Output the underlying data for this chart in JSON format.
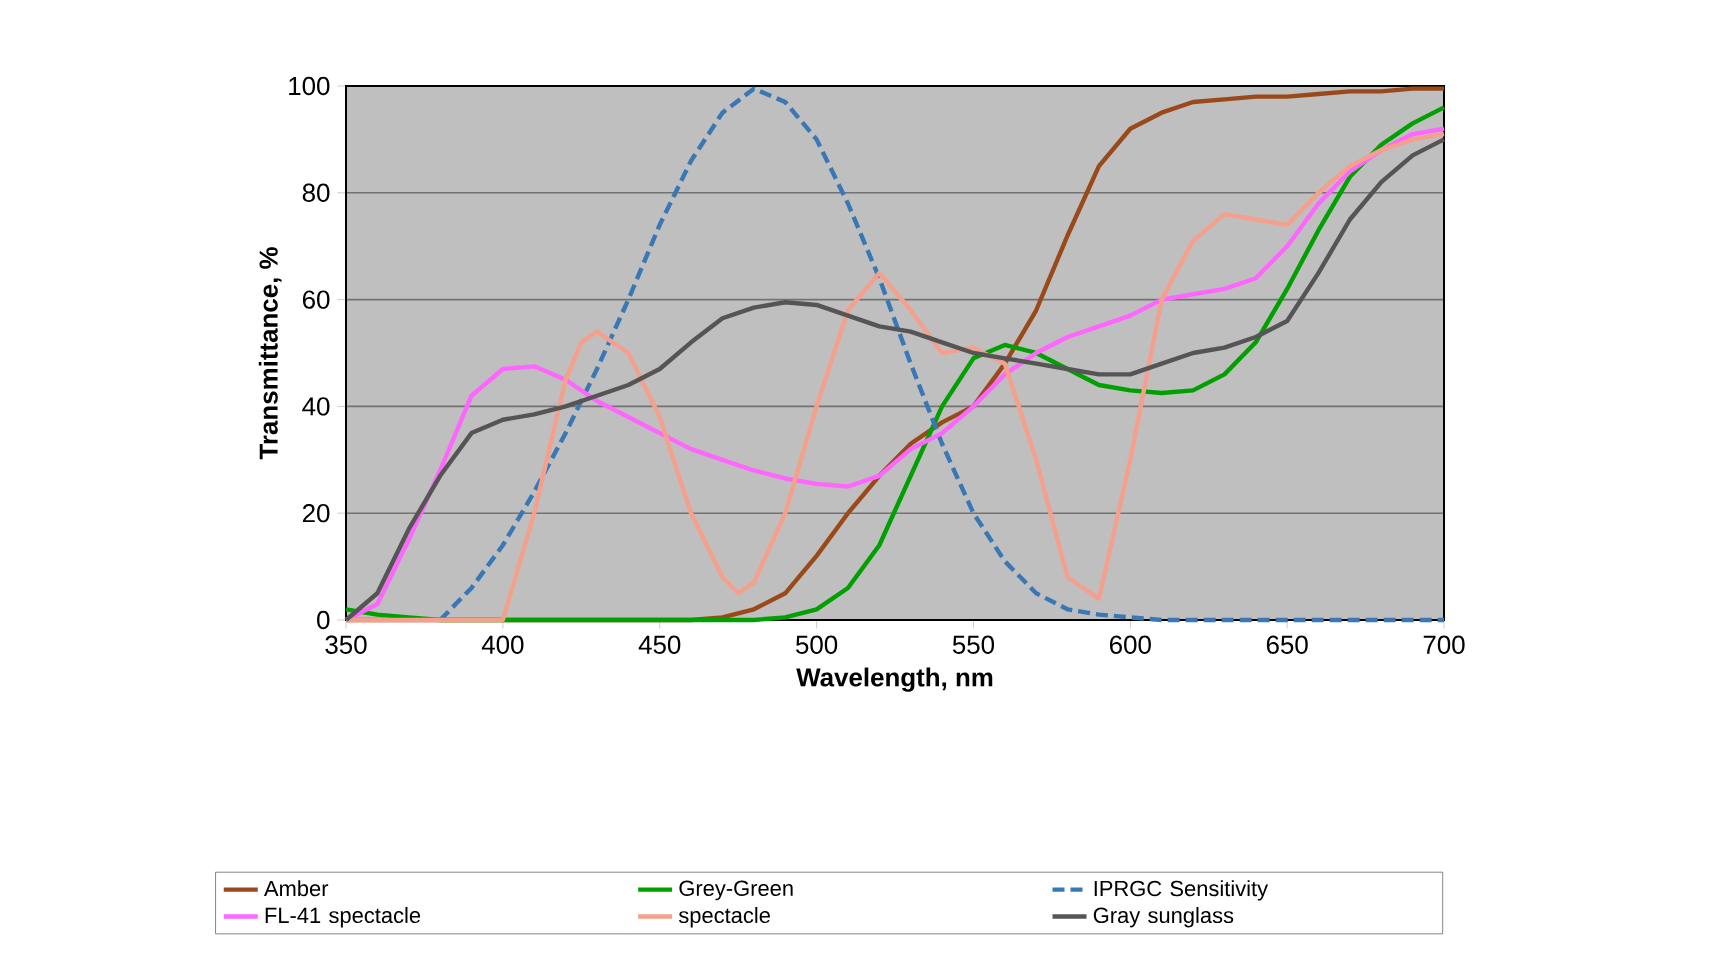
{
  "chart_data": {
    "type": "line",
    "xlabel": "Wavelength, nm",
    "ylabel": "Transmittance, %",
    "xlim": [
      350,
      700
    ],
    "xticks": [
      350,
      400,
      450,
      500,
      550,
      600,
      650,
      700
    ],
    "ylim": [
      0,
      100
    ],
    "yticks": [
      0,
      20,
      40,
      60,
      80,
      100
    ],
    "grid": "y",
    "legend": "bottom",
    "line_style": "solid",
    "series": [
      {
        "name": "Amber",
        "color": "#9a4a1a",
        "x": [
          350,
          360,
          370,
          380,
          390,
          400,
          410,
          420,
          430,
          440,
          450,
          460,
          470,
          480,
          490,
          500,
          510,
          520,
          530,
          540,
          550,
          560,
          570,
          580,
          590,
          600,
          610,
          620,
          630,
          640,
          650,
          660,
          670,
          680,
          690,
          700
        ],
        "values": [
          0,
          0,
          0,
          0,
          0,
          0,
          0,
          0,
          0,
          0,
          0,
          0,
          0.5,
          2,
          5,
          12,
          20,
          27,
          33,
          37,
          40,
          48,
          58,
          72,
          85,
          92,
          95,
          97,
          97.5,
          98,
          98,
          98.5,
          99,
          99,
          99.5,
          99.5
        ]
      },
      {
        "name": "Grey-Green",
        "color": "#00a000",
        "x": [
          350,
          360,
          370,
          380,
          390,
          400,
          410,
          420,
          430,
          440,
          450,
          460,
          470,
          480,
          490,
          500,
          510,
          520,
          530,
          540,
          550,
          560,
          570,
          580,
          590,
          600,
          610,
          620,
          630,
          640,
          650,
          660,
          670,
          680,
          690,
          700
        ],
        "values": [
          2,
          1,
          0.5,
          0,
          0,
          0,
          0,
          0,
          0,
          0,
          0,
          0,
          0,
          0,
          0.5,
          2,
          6,
          14,
          27,
          40,
          49,
          51.5,
          50,
          47,
          44,
          43,
          42.5,
          43,
          46,
          52,
          62,
          73,
          83,
          89,
          93,
          96
        ]
      },
      {
        "name": "IPRGC Sensitivity",
        "color": "#3a78b5",
        "line_style": "dashed",
        "x": [
          380,
          390,
          400,
          410,
          420,
          430,
          440,
          450,
          460,
          470,
          480,
          490,
          500,
          510,
          520,
          530,
          540,
          550,
          560,
          570,
          580,
          590,
          600,
          610,
          620,
          630,
          640,
          650,
          660,
          670,
          680,
          690,
          700
        ],
        "values": [
          0,
          6,
          14,
          24,
          35,
          47,
          60,
          74,
          86,
          95,
          99.5,
          97,
          90,
          78,
          64,
          48,
          33,
          20,
          11,
          5,
          2,
          1,
          0.5,
          0,
          0,
          0,
          0,
          0,
          0,
          0,
          0,
          0,
          0
        ]
      },
      {
        "name": "FL-41 spectacle",
        "color": "#ff66ff",
        "x": [
          350,
          360,
          370,
          380,
          390,
          400,
          410,
          420,
          430,
          440,
          450,
          460,
          470,
          480,
          490,
          500,
          510,
          520,
          530,
          540,
          550,
          560,
          570,
          580,
          590,
          600,
          610,
          620,
          630,
          640,
          650,
          660,
          670,
          680,
          690,
          700
        ],
        "values": [
          0,
          3,
          15,
          28,
          42,
          47,
          47.5,
          45,
          41,
          38,
          35,
          32,
          30,
          28,
          26.5,
          25.5,
          25,
          27,
          32,
          35,
          40,
          46,
          50,
          53,
          55,
          57,
          60,
          61,
          62,
          64,
          70,
          78,
          84,
          88,
          91,
          92
        ]
      },
      {
        "name": "spectacle",
        "color": "#f4a08c",
        "x": [
          350,
          360,
          370,
          380,
          390,
          400,
          410,
          420,
          425,
          430,
          440,
          450,
          460,
          470,
          475,
          480,
          490,
          500,
          510,
          520,
          530,
          540,
          550,
          560,
          570,
          580,
          590,
          600,
          610,
          620,
          630,
          640,
          650,
          660,
          670,
          680,
          690,
          700
        ],
        "values": [
          0,
          0,
          0,
          0,
          0,
          0,
          20,
          45,
          52,
          54,
          50,
          38,
          20,
          8,
          5,
          7,
          20,
          40,
          58,
          65,
          58,
          50,
          51,
          48,
          30,
          8,
          4,
          30,
          60,
          71,
          76,
          75,
          74,
          80,
          85,
          88,
          90,
          91
        ]
      },
      {
        "name": "Gray sunglass",
        "color": "#555555",
        "x": [
          350,
          360,
          370,
          380,
          390,
          400,
          410,
          420,
          430,
          440,
          450,
          460,
          470,
          480,
          490,
          500,
          510,
          520,
          530,
          540,
          550,
          560,
          570,
          580,
          590,
          600,
          610,
          620,
          630,
          640,
          650,
          660,
          670,
          680,
          690,
          700
        ],
        "values": [
          0,
          5,
          17,
          27,
          35,
          37.5,
          38.5,
          40,
          42,
          44,
          47,
          52,
          56.5,
          58.5,
          59.5,
          59,
          57,
          55,
          54,
          52,
          50,
          49,
          48,
          47,
          46,
          46,
          48,
          50,
          51,
          53,
          56,
          65,
          75,
          82,
          87,
          90
        ]
      }
    ]
  }
}
